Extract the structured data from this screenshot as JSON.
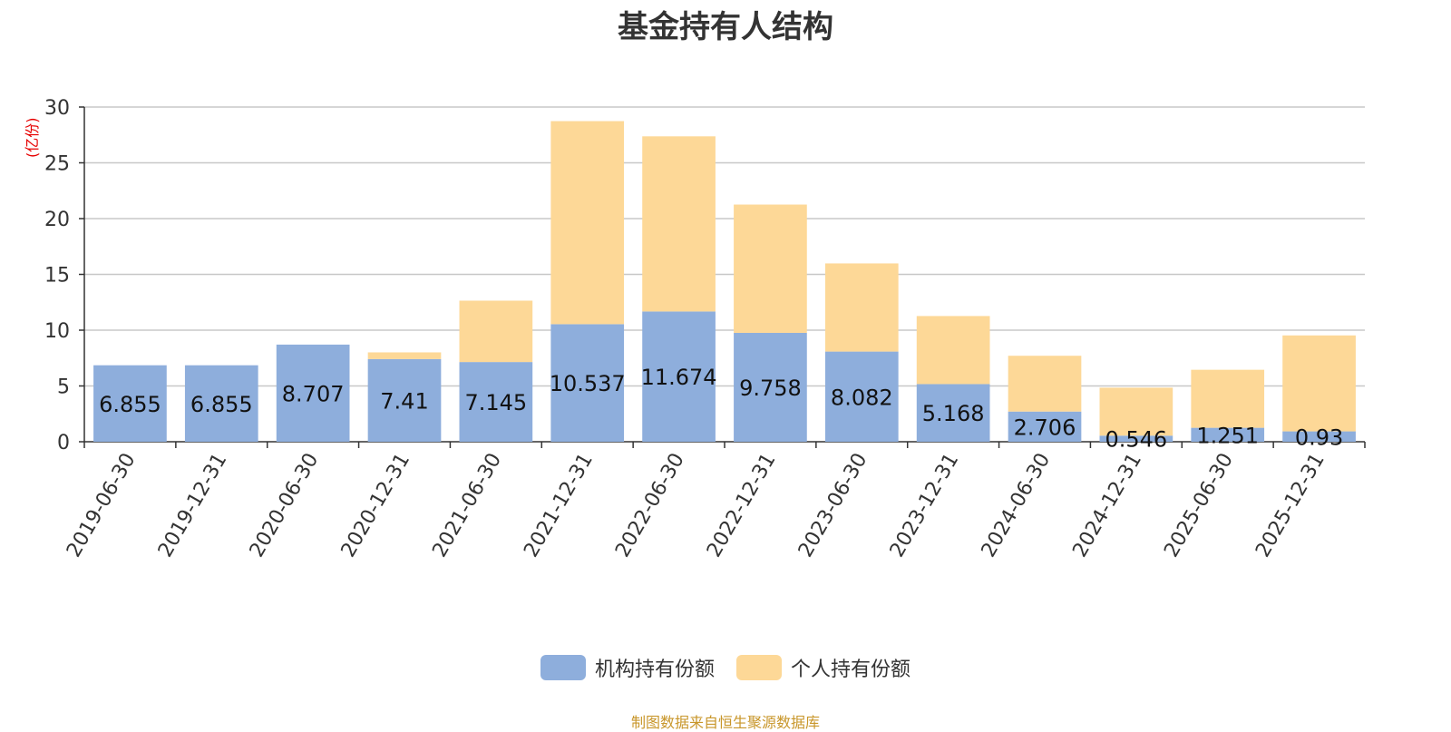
{
  "chart_data": {
    "type": "bar",
    "stacked": true,
    "title": "基金持有人结构",
    "ylabel": "(亿份)",
    "ylim": [
      0,
      30
    ],
    "yticks": [
      0,
      5,
      10,
      15,
      20,
      25,
      30
    ],
    "grid": true,
    "legend_position": "bottom",
    "categories": [
      "2019-06-30",
      "2019-12-31",
      "2020-06-30",
      "2020-12-31",
      "2021-06-30",
      "2021-12-31",
      "2022-06-30",
      "2022-12-31",
      "2023-06-30",
      "2023-12-31",
      "2024-06-30",
      "2024-12-31",
      "2025-06-30",
      "2025-12-31"
    ],
    "series": [
      {
        "name": "机构持有份额",
        "color": "#8eaedc",
        "values": [
          6.855,
          6.855,
          8.707,
          7.41,
          7.145,
          10.537,
          11.674,
          9.758,
          8.082,
          5.168,
          2.706,
          0.546,
          1.251,
          0.93
        ],
        "labels": [
          "6.855",
          "6.855",
          "8.707",
          "7.41",
          "7.145",
          "10.537",
          "11.674",
          "9.758",
          "8.082",
          "5.168",
          "2.706",
          "0.546",
          "1.251",
          "0.93"
        ]
      },
      {
        "name": "个人持有份额",
        "color": "#fdd897",
        "values": [
          0.0,
          0.0,
          0.0,
          0.6,
          5.5,
          18.2,
          15.7,
          11.5,
          7.9,
          6.1,
          5.0,
          4.3,
          5.2,
          8.6
        ]
      }
    ]
  },
  "source": "制图数据来自恒生聚源数据库"
}
